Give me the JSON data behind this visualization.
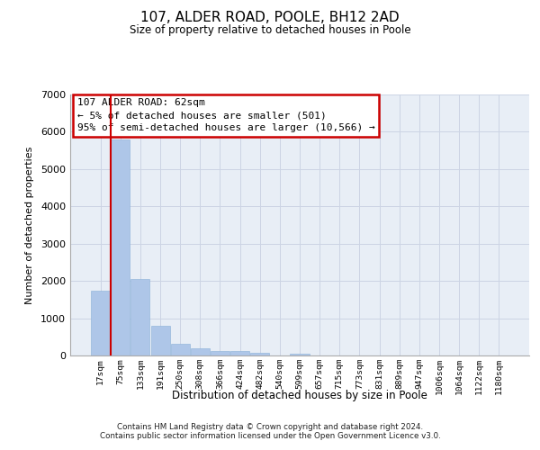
{
  "title_line1": "107, ALDER ROAD, POOLE, BH12 2AD",
  "title_line2": "Size of property relative to detached houses in Poole",
  "xlabel": "Distribution of detached houses by size in Poole",
  "ylabel": "Number of detached properties",
  "annotation_line1": "107 ALDER ROAD: 62sqm",
  "annotation_line2": "← 5% of detached houses are smaller (501)",
  "annotation_line3": "95% of semi-detached houses are larger (10,566) →",
  "footnote1": "Contains HM Land Registry data © Crown copyright and database right 2024.",
  "footnote2": "Contains public sector information licensed under the Open Government Licence v3.0.",
  "bar_labels": [
    "17sqm",
    "75sqm",
    "133sqm",
    "191sqm",
    "250sqm",
    "308sqm",
    "366sqm",
    "424sqm",
    "482sqm",
    "540sqm",
    "599sqm",
    "657sqm",
    "715sqm",
    "773sqm",
    "831sqm",
    "889sqm",
    "947sqm",
    "1006sqm",
    "1064sqm",
    "1122sqm",
    "1180sqm"
  ],
  "bar_values": [
    1750,
    5800,
    2050,
    800,
    310,
    200,
    130,
    110,
    70,
    0,
    60,
    0,
    0,
    0,
    0,
    0,
    0,
    0,
    0,
    0,
    0
  ],
  "bar_color": "#aec6e8",
  "bar_edge_color": "#8ab0d8",
  "vline_color": "#cc0000",
  "ann_edge_color": "#cc0000",
  "ylim_max": 7000,
  "yticks": [
    0,
    1000,
    2000,
    3000,
    4000,
    5000,
    6000,
    7000
  ],
  "grid_color": "#ccd4e4",
  "background_color": "#e8eef6"
}
